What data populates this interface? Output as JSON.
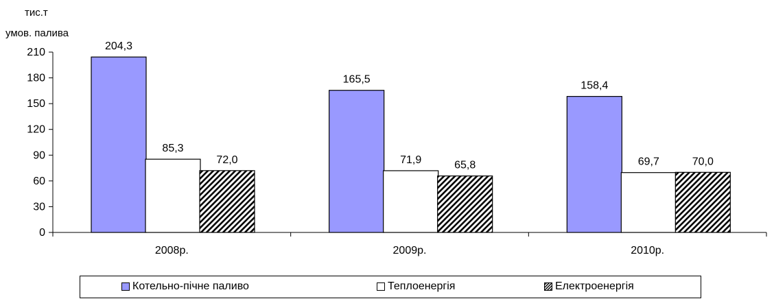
{
  "chart_data": {
    "type": "bar",
    "title": "",
    "ylabel": "тис.т умов. палива",
    "ylabel_lines": [
      "тис.т",
      "умов. палива"
    ],
    "xlabel": "",
    "ylim": [
      0,
      210
    ],
    "yticks": [
      "0",
      "30",
      "60",
      "90",
      "120",
      "150",
      "180",
      "210"
    ],
    "categories": [
      "2008р.",
      "2009р.",
      "2010р."
    ],
    "series": [
      {
        "name": "Котельно-пічне паливо",
        "values": [
          204.3,
          165.5,
          158.4
        ],
        "labels": [
          "204,3",
          "165,5",
          "158,4"
        ],
        "color": "#9999ff",
        "pattern": "solid"
      },
      {
        "name": "Теплоенергія",
        "values": [
          85.3,
          71.9,
          69.7
        ],
        "labels": [
          "85,3",
          "71,9",
          "69,7"
        ],
        "color": "#ffffff",
        "pattern": "solid"
      },
      {
        "name": "Електроенергія",
        "values": [
          72.0,
          65.8,
          70.0
        ],
        "labels": [
          "72,0",
          "65,8",
          "70,0"
        ],
        "color": "#000000",
        "pattern": "diagonal-hatch"
      }
    ],
    "grid": false,
    "legend_position": "bottom"
  }
}
